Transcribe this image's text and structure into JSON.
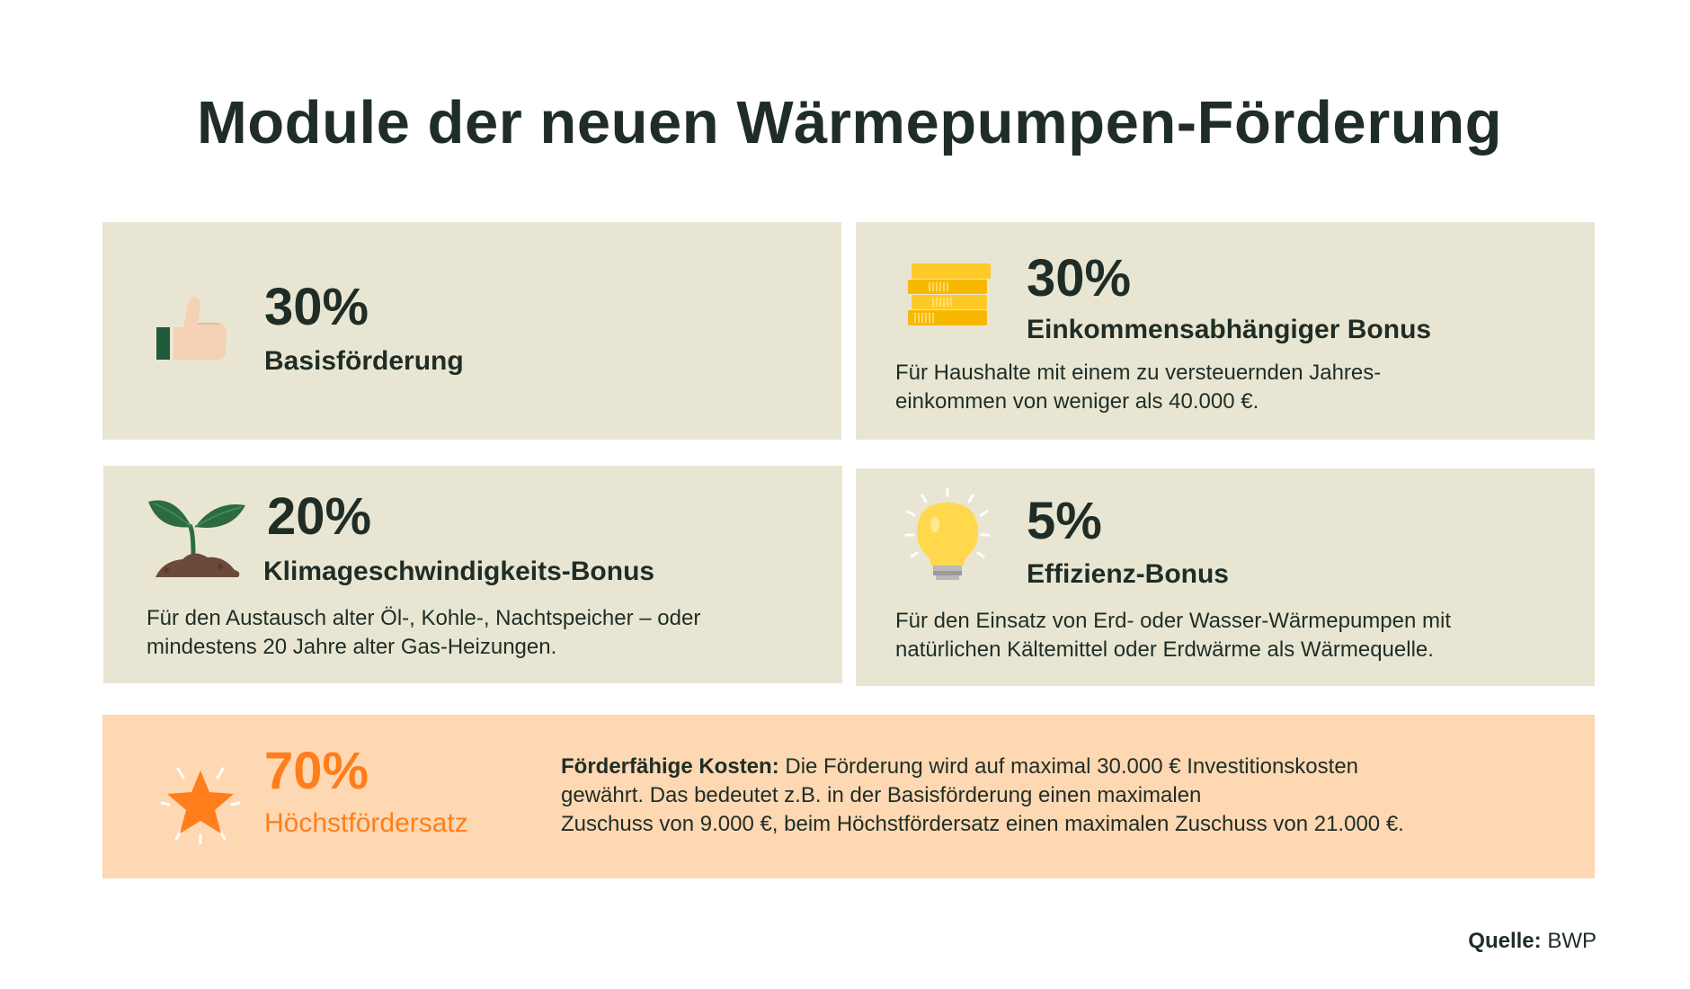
{
  "title": "Module der neuen Wärmepumpen-Förderung",
  "modules": [
    {
      "percent": "30%",
      "label": "Basisförderung",
      "description": [],
      "icon": "thumbs-up-icon"
    },
    {
      "percent": "30%",
      "label": "Einkommensabhängiger Bonus",
      "description": [
        "Für Haushalte mit einem zu versteuernden Jahres-",
        "einkommen von weniger als 40.000 €."
      ],
      "icon": "coins-icon"
    },
    {
      "percent": "20%",
      "label": "Klimageschwindigkeits-Bonus",
      "description": [
        "Für den Austausch alter Öl-, Kohle-, Nachtspeicher – oder",
        "mindestens 20 Jahre alter Gas-Heizungen."
      ],
      "icon": "sprout-icon"
    },
    {
      "percent": "5%",
      "label": "Effizienz-Bonus",
      "description": [
        "Für den Einsatz von Erd- oder Wasser-Wärmepumpen mit",
        "natürlichen Kältemittel oder Erdwärme als Wärmequelle."
      ],
      "icon": "lightbulb-icon"
    }
  ],
  "max": {
    "percent": "70%",
    "label": "Höchstfördersatz",
    "icon": "star-icon",
    "costs_heading": "Förderfähige Kosten:",
    "costs_lines": [
      " Die Förderung wird auf maximal 30.000 € Investitionskosten",
      "gewährt. Das bedeutet z.B. in der Basisförderung einen  maximalen",
      "Zuschuss von 9.000 €, beim Höchstfördersatz einen maximalen Zuschuss von 21.000 €."
    ]
  },
  "source": {
    "label": "Quelle:",
    "value": "BWP"
  },
  "colors": {
    "card": "#e8e6d3",
    "highlight_card": "#fdd8b3",
    "accent_orange": "#ff7e1b",
    "text_dark": "#1f2d26"
  }
}
